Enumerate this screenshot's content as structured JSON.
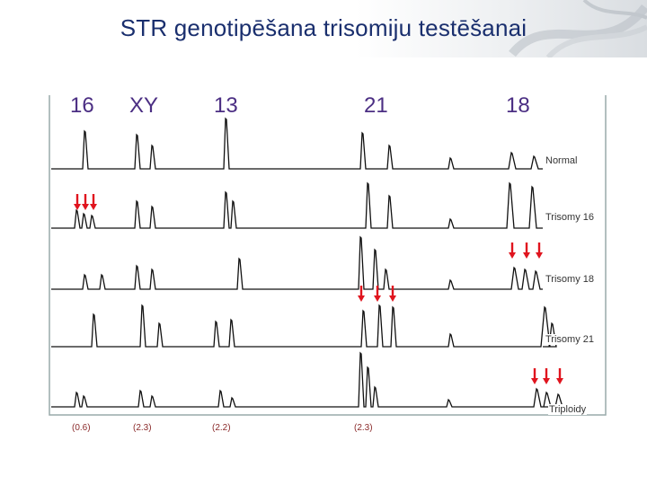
{
  "slide": {
    "title": "STR genotipēšana trisomiju testēšanai"
  },
  "figure": {
    "locus_labels": [
      "16",
      "XY",
      "13",
      "21",
      "18"
    ],
    "trace_labels": [
      "Normal",
      "Trisomy 16",
      "Trisomy 18",
      "Trisomy 21",
      "Triploidy"
    ],
    "ratio_labels": [
      "(0.6)",
      "(2.3)",
      "(2.2)",
      "(2.3)"
    ],
    "arrow_color": "#e0141e",
    "trace_color": "#111111",
    "locus_color": "#4b2e83"
  }
}
